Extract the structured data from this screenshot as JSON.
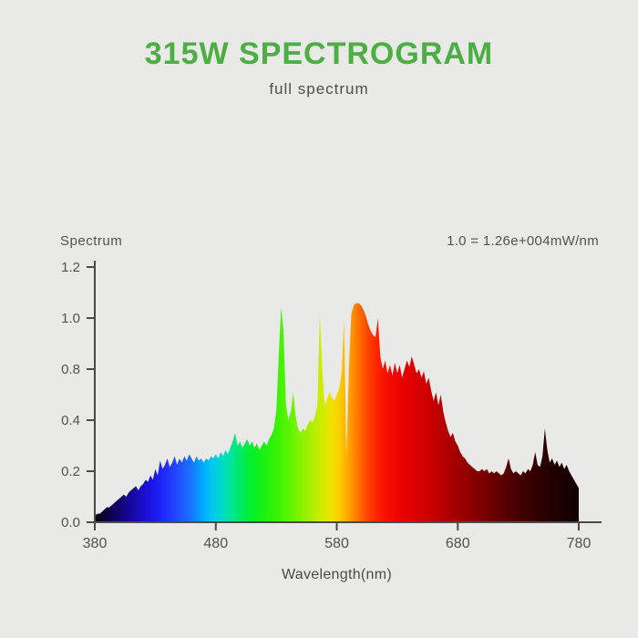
{
  "header": {
    "title": "315W SPECTROGRAM",
    "subtitle": "full spectrum"
  },
  "chart": {
    "y_axis_title": "Spectrum",
    "scale_note": "1.0 = 1.26e+004mW/nm",
    "x_axis_title": "Wavelength(nm)"
  },
  "colors": {
    "background": "#e9e9e8",
    "title_green": "#4cae43",
    "text_gray": "#515151",
    "axis": "#4a4a4a"
  },
  "chart_data": {
    "type": "area",
    "title": "315W SPECTROGRAM",
    "subtitle": "full spectrum",
    "xlabel": "Wavelength(nm)",
    "ylabel": "Spectrum",
    "scale_note": "1.0 = 1.26e+004mW/nm",
    "x_ticks": [
      "380",
      "480",
      "580",
      "680",
      "780"
    ],
    "y_ticks": [
      "1.2",
      "1.0",
      "0.8",
      "0.4",
      "0.2",
      "0.0"
    ],
    "xlim": [
      380,
      780
    ],
    "ylim": [
      0,
      1.2
    ],
    "grid": false,
    "legend": false,
    "x_start_nm": 380,
    "x_step_nm": 2,
    "values": [
      0.03,
      0.04,
      0.04,
      0.05,
      0.06,
      0.07,
      0.07,
      0.08,
      0.09,
      0.1,
      0.11,
      0.12,
      0.13,
      0.12,
      0.14,
      0.15,
      0.16,
      0.17,
      0.15,
      0.17,
      0.18,
      0.2,
      0.19,
      0.22,
      0.2,
      0.25,
      0.22,
      0.29,
      0.25,
      0.27,
      0.3,
      0.26,
      0.28,
      0.31,
      0.27,
      0.3,
      0.28,
      0.31,
      0.29,
      0.32,
      0.3,
      0.28,
      0.31,
      0.29,
      0.3,
      0.28,
      0.3,
      0.29,
      0.31,
      0.3,
      0.32,
      0.3,
      0.33,
      0.31,
      0.34,
      0.32,
      0.35,
      0.38,
      0.42,
      0.36,
      0.38,
      0.35,
      0.37,
      0.39,
      0.36,
      0.38,
      0.35,
      0.37,
      0.34,
      0.36,
      0.38,
      0.36,
      0.39,
      0.41,
      0.44,
      0.52,
      0.78,
      1.01,
      0.9,
      0.55,
      0.48,
      0.52,
      0.61,
      0.5,
      0.44,
      0.42,
      0.44,
      0.43,
      0.46,
      0.48,
      0.47,
      0.5,
      0.55,
      0.98,
      0.72,
      0.55,
      0.58,
      0.61,
      0.59,
      0.57,
      0.6,
      0.63,
      0.7,
      0.95,
      0.3,
      0.72,
      0.98,
      1.02,
      1.03,
      1.03,
      1.02,
      1.0,
      0.97,
      0.93,
      0.9,
      0.88,
      0.87,
      0.96,
      0.78,
      0.72,
      0.76,
      0.7,
      0.74,
      0.69,
      0.75,
      0.7,
      0.74,
      0.68,
      0.72,
      0.76,
      0.73,
      0.78,
      0.74,
      0.7,
      0.72,
      0.68,
      0.71,
      0.65,
      0.68,
      0.62,
      0.57,
      0.61,
      0.55,
      0.6,
      0.52,
      0.47,
      0.43,
      0.4,
      0.42,
      0.38,
      0.36,
      0.33,
      0.31,
      0.3,
      0.28,
      0.27,
      0.26,
      0.25,
      0.24,
      0.24,
      0.25,
      0.24,
      0.25,
      0.23,
      0.24,
      0.23,
      0.24,
      0.23,
      0.22,
      0.23,
      0.26,
      0.3,
      0.25,
      0.23,
      0.24,
      0.23,
      0.22,
      0.24,
      0.23,
      0.25,
      0.24,
      0.27,
      0.33,
      0.27,
      0.26,
      0.31,
      0.44,
      0.34,
      0.28,
      0.3,
      0.27,
      0.29,
      0.26,
      0.28,
      0.25,
      0.27,
      0.24,
      0.22,
      0.2,
      0.18,
      0.16
    ],
    "spectral_gradient": [
      {
        "nm": 380,
        "color": "#06010c"
      },
      {
        "nm": 390,
        "color": "#0a0140"
      },
      {
        "nm": 400,
        "color": "#110472"
      },
      {
        "nm": 410,
        "color": "#16079f"
      },
      {
        "nm": 420,
        "color": "#1a0ecc"
      },
      {
        "nm": 430,
        "color": "#1c19ee"
      },
      {
        "nm": 440,
        "color": "#1f32ff"
      },
      {
        "nm": 450,
        "color": "#2150ff"
      },
      {
        "nm": 460,
        "color": "#1a75ff"
      },
      {
        "nm": 468,
        "color": "#00a2ff"
      },
      {
        "nm": 476,
        "color": "#00c4f2"
      },
      {
        "nm": 484,
        "color": "#00d8cc"
      },
      {
        "nm": 492,
        "color": "#00e49e"
      },
      {
        "nm": 500,
        "color": "#00ea64"
      },
      {
        "nm": 510,
        "color": "#05ee2c"
      },
      {
        "nm": 520,
        "color": "#1cf011"
      },
      {
        "nm": 532,
        "color": "#3df202"
      },
      {
        "nm": 545,
        "color": "#6ef400"
      },
      {
        "nm": 556,
        "color": "#9ff000"
      },
      {
        "nm": 566,
        "color": "#c9ec00"
      },
      {
        "nm": 575,
        "color": "#eee200"
      },
      {
        "nm": 583,
        "color": "#ffcb00"
      },
      {
        "nm": 591,
        "color": "#ff9d00"
      },
      {
        "nm": 599,
        "color": "#ff6a00"
      },
      {
        "nm": 607,
        "color": "#ff3d00"
      },
      {
        "nm": 615,
        "color": "#fb1e00"
      },
      {
        "nm": 625,
        "color": "#f30900"
      },
      {
        "nm": 637,
        "color": "#e60000"
      },
      {
        "nm": 650,
        "color": "#d40000"
      },
      {
        "nm": 664,
        "color": "#bd0000"
      },
      {
        "nm": 678,
        "color": "#a40000"
      },
      {
        "nm": 693,
        "color": "#880000"
      },
      {
        "nm": 708,
        "color": "#6b0000"
      },
      {
        "nm": 724,
        "color": "#500000"
      },
      {
        "nm": 740,
        "color": "#380000"
      },
      {
        "nm": 757,
        "color": "#230000"
      },
      {
        "nm": 780,
        "color": "#100000"
      }
    ]
  }
}
